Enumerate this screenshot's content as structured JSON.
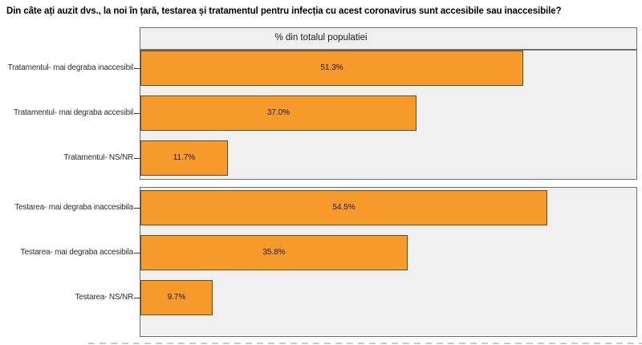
{
  "title": "Din câte ați auzit dvs., la noi în țară, testarea și tratamentul pentru infecția cu acest coronavirus sunt accesibile sau inaccesibile?",
  "colors": {
    "bar_fill": "#F79A2C",
    "bar_border": "#5C4E26",
    "panel_background": "#F0F0F0",
    "panel_border": "#6F6F6F",
    "title_color": "#000000"
  },
  "chart_data": {
    "type": "bar",
    "orientation": "horizontal",
    "panel_header": "% din totalul populatiei",
    "panels": [
      {
        "name": "Tratamentul",
        "bars": [
          {
            "label": "Tratamentul- mai degraba inaccesibil",
            "value": 51.3,
            "value_label": "51.3%"
          },
          {
            "label": "Tratamentul- mai degraba accesibil",
            "value": 37.0,
            "value_label": "37.0%"
          },
          {
            "label": "Tratamentul- NS/NR",
            "value": 11.7,
            "value_label": "11.7%"
          }
        ]
      },
      {
        "name": "Testarea",
        "bars": [
          {
            "label": "Testarea- mai degraba inaccesibila",
            "value": 54.5,
            "value_label": "54.5%"
          },
          {
            "label": "Testarea- mai degraba accesibila",
            "value": 35.8,
            "value_label": "35.8%"
          },
          {
            "label": "Testarea- NS/NR",
            "value": 9.7,
            "value_label": "9.7%"
          }
        ]
      }
    ],
    "xlim": [
      0,
      66.3
    ],
    "x_axis_visible": false,
    "grid": false,
    "legend_position": "none"
  }
}
